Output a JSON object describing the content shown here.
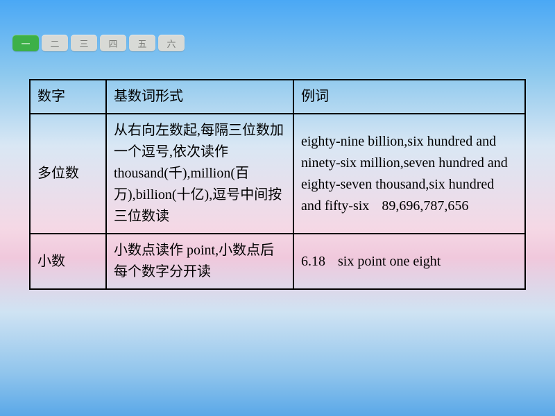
{
  "tabs": {
    "items": [
      "一",
      "二",
      "三",
      "四",
      "五",
      "六"
    ],
    "active_index": 0,
    "active_bg": "#3db048",
    "inactive_bg": "#d8dad6"
  },
  "table": {
    "border_color": "#000000",
    "font_size": 20,
    "headers": {
      "col1_a": "数",
      "col1_b": "字",
      "col2": "基数词形式",
      "col3_a": "例",
      "col3_b": "词"
    },
    "rows": [
      {
        "c1": "多位数",
        "c2": "从右向左数起,每隔三位数加一个逗号,依次读作thousand(千),million(百万),billion(十亿),逗号中间按三位数读",
        "c3": "eighty-nine billion,six hundred and ninety-six million,seven hundred and eighty-seven thousand,six hundred and fifty-six",
        "c3_num": "89,696,787,656"
      },
      {
        "c1": "小数",
        "c2": "小数点读作 point,小数点后每个数字分开读",
        "c3": "6.18",
        "c3_num": "six point one eight"
      }
    ]
  }
}
